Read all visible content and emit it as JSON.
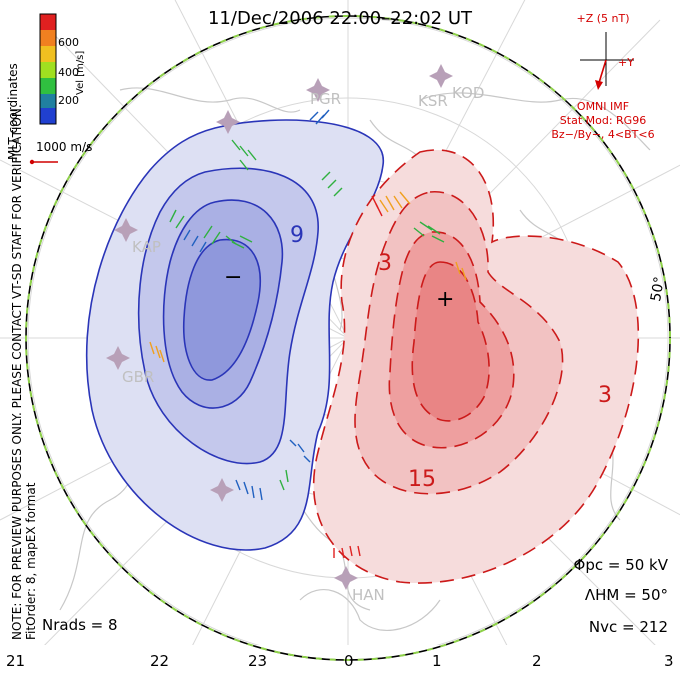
{
  "title": "11/Dec/2006 22:00–22:02 UT",
  "side_note": "NOTE: FOR PREVIEW PURPOSES ONLY. PLEASE CONTACT VT-SD STAFF FOR VERIFICATION.",
  "fit_info": "FitOrder: 8, mapEX format",
  "coord_label": "MLT coordinates",
  "velocity_colorbar": {
    "label": "Vel [m/s]",
    "ticks": [
      "600",
      "400",
      "200"
    ],
    "colors": [
      "#e02020",
      "#f08020",
      "#f0c020",
      "#a0e020",
      "#30c040",
      "#2080a0",
      "#2040d0"
    ]
  },
  "vector_scale_label": "1000 m/s",
  "imf": {
    "label": "+Z (5 nT)",
    "y_label": "+Y",
    "source": "OMNI IMF",
    "model": "Stat Mod: RG96",
    "condition": "Bz−/By−, 4<BT<6"
  },
  "stats": {
    "phi_pc": "Φpc = 50 kV",
    "lambda_hm": "ΛHM = 50°",
    "n_vc": "Nvc = 212",
    "n_rads": "Nrads = 8"
  },
  "mlt_ticks": [
    "21",
    "22",
    "23",
    "0",
    "1",
    "2",
    "3"
  ],
  "latitude_label": "50°",
  "radars": [
    "PGR",
    "KSR",
    "KOD",
    "KAP",
    "GBR",
    "HAN"
  ],
  "contours": {
    "negative_label": "9",
    "positive_labels": [
      "3",
      "15",
      "3"
    ],
    "negative_cell_marker": "−",
    "positive_cell_marker": "+"
  },
  "colors": {
    "negative_cell": "#2a35b8",
    "positive_cell": "#cc1a1a",
    "imf_red": "#d40000",
    "hm_boundary": "#8fd24a"
  }
}
